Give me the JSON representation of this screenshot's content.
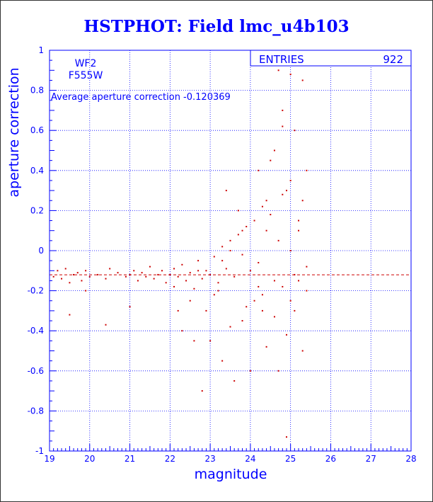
{
  "title": "HSTPHOT: Field lmc_u4b103",
  "panel": {
    "detector": "WF2",
    "filter": "F555W",
    "average_text": "Average aperture correction -0.120369",
    "entries_label": "ENTRIES",
    "entries_value": "922"
  },
  "colors": {
    "axes": "#0000ff",
    "title": "#0000ff",
    "points": "#cc0000",
    "average_line": "#cc0000",
    "background": "#ffffff"
  },
  "chart_data": {
    "type": "scatter",
    "title": "HSTPHOT: Field lmc_u4b103",
    "xlabel": "magnitude",
    "ylabel": "aperture correction",
    "xlim": [
      19,
      28
    ],
    "ylim": [
      -1,
      1
    ],
    "xticks": [
      "19",
      "20",
      "21",
      "22",
      "23",
      "24",
      "25",
      "26",
      "27",
      "28"
    ],
    "yticks": [
      "-1",
      "-0.8",
      "-0.6",
      "-0.4",
      "-0.2",
      "0",
      "0.2",
      "0.4",
      "0.6",
      "0.8",
      "1"
    ],
    "grid": true,
    "average_line_y": -0.120369,
    "entries": 922,
    "series": [
      {
        "x": [
          19.1,
          19.2,
          19.3,
          19.4,
          19.5,
          19.6,
          19.7,
          19.8,
          19.9,
          20.0,
          20.2,
          20.4,
          20.5,
          20.7,
          20.9,
          21.0,
          21.1,
          21.2,
          21.3,
          21.4,
          21.5,
          21.6,
          21.7,
          21.8,
          21.9,
          22.0,
          22.1,
          22.1,
          22.2,
          22.3,
          22.4,
          22.5,
          22.6,
          22.7,
          22.8,
          22.9,
          23.0,
          23.1,
          23.2,
          23.3,
          23.4,
          23.5,
          23.6,
          23.7,
          23.8,
          23.9,
          24.0,
          24.1,
          24.2,
          24.3,
          24.4,
          24.5,
          24.6,
          24.7,
          24.8,
          24.9,
          25.0,
          25.1,
          25.2,
          25.3,
          25.4,
          22.3,
          22.6,
          22.9,
          23.3,
          23.8,
          24.1,
          24.4,
          24.7,
          24.9,
          25.1,
          25.3,
          23.2,
          23.5,
          23.9,
          24.3,
          24.6,
          24.8,
          25.0,
          25.2,
          25.4,
          24.9,
          25.0,
          25.3,
          25.5,
          24.8,
          25.1,
          24.5,
          23.4,
          24.2,
          24.6,
          23.7,
          22.8,
          24.9,
          24.7,
          24.4,
          22.5,
          23.0,
          23.6,
          24.0,
          24.3,
          22.2,
          21.0,
          20.4,
          19.5,
          19.9,
          22.7,
          23.1,
          23.5,
          24.8,
          25.0,
          23.3,
          23.8,
          24.2,
          25.4,
          25.2
        ],
        "y": [
          -0.13,
          -0.1,
          -0.14,
          -0.09,
          -0.16,
          -0.12,
          -0.11,
          -0.15,
          -0.1,
          -0.13,
          -0.12,
          -0.14,
          -0.09,
          -0.11,
          -0.13,
          -0.12,
          -0.1,
          -0.15,
          -0.11,
          -0.13,
          -0.08,
          -0.14,
          -0.12,
          -0.1,
          -0.16,
          -0.12,
          -0.09,
          -0.18,
          -0.13,
          -0.07,
          -0.15,
          -0.11,
          -0.19,
          -0.05,
          -0.14,
          -0.1,
          -0.12,
          -0.03,
          -0.16,
          0.02,
          -0.09,
          0.05,
          -0.13,
          0.08,
          -0.02,
          0.12,
          -0.1,
          0.15,
          -0.06,
          0.22,
          0.1,
          0.18,
          -0.15,
          0.05,
          0.28,
          0.3,
          0.35,
          -0.12,
          0.1,
          0.25,
          -0.08,
          -0.4,
          -0.45,
          -0.3,
          -0.55,
          -0.35,
          -0.25,
          -0.48,
          -0.6,
          -0.42,
          -0.3,
          -0.5,
          -0.2,
          -0.38,
          -0.28,
          -0.22,
          -0.33,
          -0.18,
          -0.25,
          -0.15,
          -0.2,
          0.95,
          0.88,
          0.85,
          0.97,
          0.7,
          0.6,
          0.45,
          0.3,
          0.4,
          0.5,
          0.2,
          -0.7,
          -0.93,
          0.9,
          0.25,
          -0.25,
          -0.45,
          -0.65,
          -0.6,
          -0.3,
          -0.3,
          -0.28,
          -0.37,
          -0.32,
          -0.2,
          -0.1,
          -0.22,
          0.0,
          0.62,
          0.0,
          -0.05,
          0.1,
          -0.18,
          0.4,
          0.15
        ]
      }
    ]
  }
}
